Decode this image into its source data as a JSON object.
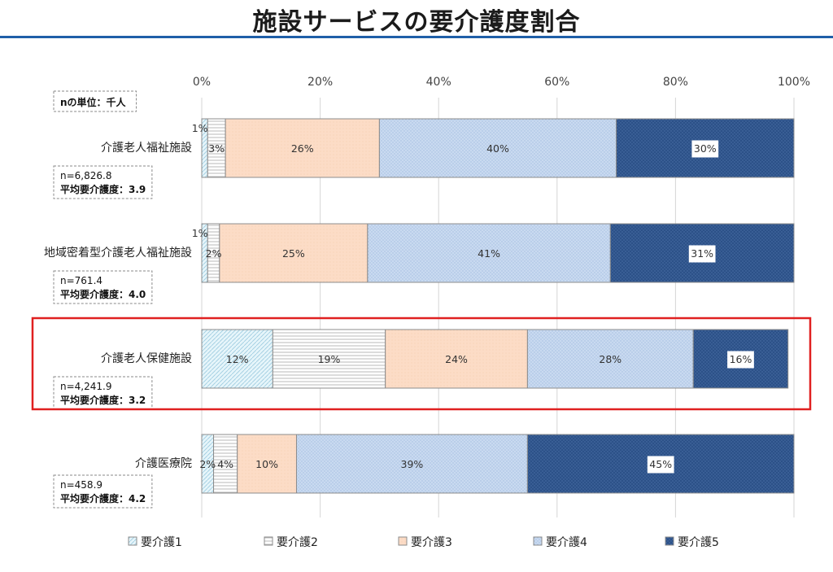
{
  "title": "施設サービスの要介護度割合",
  "unit_note": "nの単位：千人",
  "colors": {
    "title_rule": "#1f5fa8",
    "highlight": "#e02020",
    "series": [
      "#dff2f8",
      "#ffffff",
      "#fcdcc6",
      "#c3d6ee",
      "#2c5188"
    ]
  },
  "chart_data": {
    "type": "bar",
    "orientation": "horizontal",
    "stacked": "percent",
    "categories": [
      "介護老人福祉施設",
      "地域密着型介護老人福祉施設",
      "介護老人保健施設",
      "介護医療院"
    ],
    "series": [
      {
        "name": "要介護1",
        "values": [
          1,
          1,
          12,
          2
        ]
      },
      {
        "name": "要介護2",
        "values": [
          3,
          2,
          19,
          4
        ]
      },
      {
        "name": "要介護3",
        "values": [
          26,
          25,
          24,
          10
        ]
      },
      {
        "name": "要介護4",
        "values": [
          40,
          41,
          28,
          39
        ]
      },
      {
        "name": "要介護5",
        "values": [
          30,
          31,
          16,
          45
        ]
      }
    ],
    "value_labels": [
      [
        "1%",
        "3%",
        "26%",
        "40%",
        "30%"
      ],
      [
        "1%",
        "2%",
        "25%",
        "41%",
        "31%"
      ],
      [
        "12%",
        "19%",
        "24%",
        "28%",
        "16%"
      ],
      [
        "2%",
        "4%",
        "10%",
        "39%",
        "45%"
      ]
    ],
    "stats": [
      {
        "n": "n=6,826.8",
        "avg": "平均要介護度：3.9"
      },
      {
        "n": "n=761.4",
        "avg": "平均要介護度：4.0"
      },
      {
        "n": "n=4,241.9",
        "avg": "平均要介護度：3.2"
      },
      {
        "n": "n=458.9",
        "avg": "平均要介護度：4.2"
      }
    ],
    "xticks": [
      "0%",
      "20%",
      "40%",
      "60%",
      "80%",
      "100%"
    ],
    "xlim": [
      0,
      100
    ],
    "highlighted_category": "介護老人保健施設",
    "legend_position": "bottom"
  }
}
